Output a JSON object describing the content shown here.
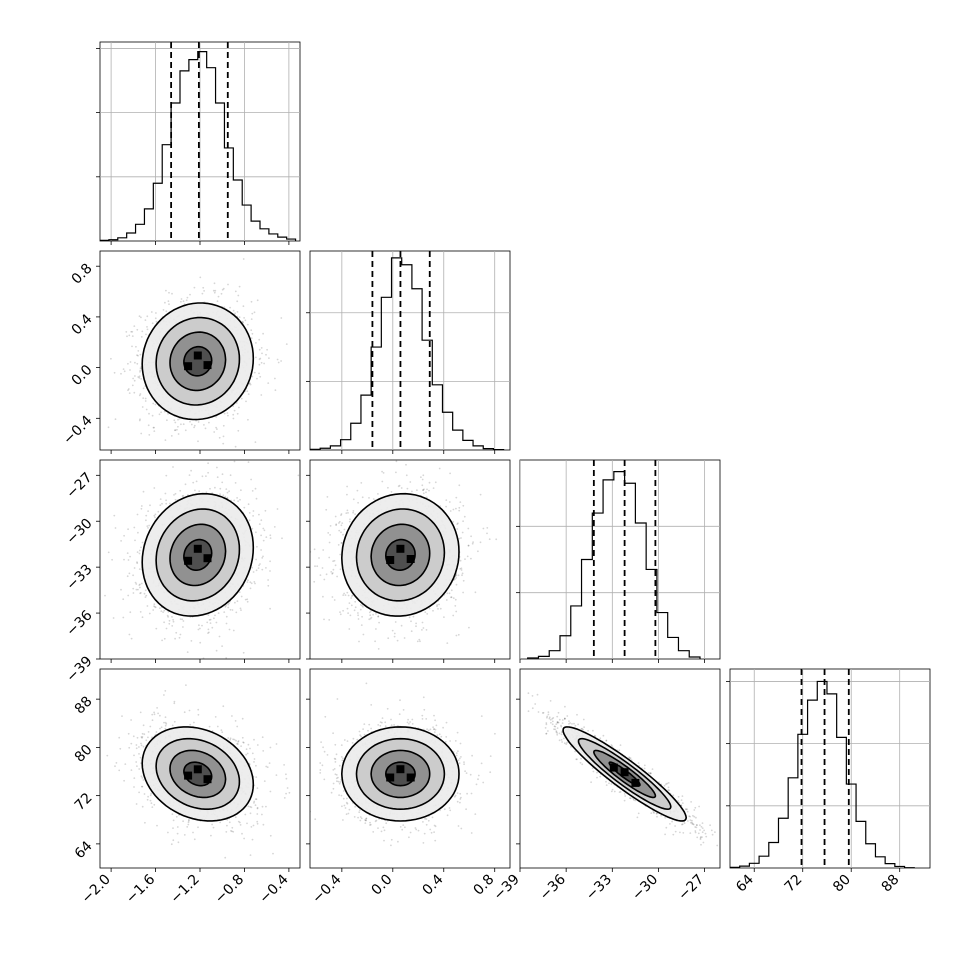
{
  "chart_data": {
    "type": "corner",
    "grid": true,
    "parameters": [
      {
        "id": "p0",
        "range": [
          -2.1,
          -0.3
        ],
        "ticks": [
          -2.0,
          -1.6,
          -1.2,
          -0.8,
          -0.4
        ],
        "tick_labels": [
          "−2.0",
          "−1.6",
          "−1.2",
          "−0.8",
          "−0.4"
        ],
        "quantiles": [
          -1.46,
          -1.21,
          -0.95
        ],
        "hist_bin_edges": [
          -2.1,
          -2.02,
          -1.94,
          -1.86,
          -1.78,
          -1.7,
          -1.62,
          -1.54,
          -1.46,
          -1.38,
          -1.3,
          -1.22,
          -1.14,
          -1.06,
          -0.98,
          -0.9,
          -0.82,
          -0.74,
          -0.66,
          -0.58,
          -0.5,
          -0.42,
          -0.34
        ],
        "hist_counts": [
          2,
          4,
          10,
          25,
          52,
          100,
          180,
          300,
          430,
          530,
          565,
          590,
          540,
          430,
          290,
          190,
          112,
          62,
          38,
          22,
          12,
          6
        ],
        "hist_ymax": 620,
        "hist_yticks": [
          200,
          400,
          600
        ]
      },
      {
        "id": "p1",
        "range": [
          -0.65,
          0.92
        ],
        "ticks": [
          -0.4,
          0.0,
          0.4,
          0.8
        ],
        "tick_labels": [
          "−0.4",
          "0.0",
          "0.4",
          "0.8"
        ],
        "quantiles": [
          -0.16,
          0.06,
          0.29
        ],
        "hist_bin_edges": [
          -0.65,
          -0.57,
          -0.49,
          -0.41,
          -0.33,
          -0.25,
          -0.17,
          -0.09,
          -0.01,
          0.07,
          0.15,
          0.23,
          0.31,
          0.39,
          0.47,
          0.55,
          0.63,
          0.71,
          0.79,
          0.87
        ],
        "hist_counts": [
          2,
          5,
          12,
          30,
          78,
          160,
          300,
          445,
          560,
          540,
          470,
          320,
          190,
          110,
          58,
          28,
          12,
          4,
          1
        ],
        "hist_ymax": 580,
        "hist_yticks": [
          200,
          400,
          600
        ]
      },
      {
        "id": "p2",
        "range": [
          -39.0,
          -26.0
        ],
        "ticks": [
          -39,
          -36,
          -33,
          -30,
          -27
        ],
        "tick_labels": [
          "−39",
          "−36",
          "−33",
          "−30",
          "−27"
        ],
        "quantiles": [
          -34.2,
          -32.2,
          -30.2
        ],
        "hist_bin_edges": [
          -38.5,
          -37.8,
          -37.1,
          -36.4,
          -35.7,
          -35.0,
          -34.3,
          -33.6,
          -32.9,
          -32.2,
          -31.5,
          -30.8,
          -30.1,
          -29.4,
          -28.7,
          -28.0,
          -27.3
        ],
        "hist_counts": [
          3,
          8,
          25,
          70,
          160,
          300,
          440,
          540,
          565,
          530,
          410,
          270,
          140,
          65,
          25,
          6
        ],
        "hist_ymax": 600,
        "hist_yticks": [
          200,
          400,
          600
        ]
      },
      {
        "id": "p3",
        "range": [
          60.0,
          93.0
        ],
        "ticks": [
          64,
          72,
          80,
          88
        ],
        "tick_labels": [
          "64",
          "72",
          "80",
          "88"
        ],
        "quantiles": [
          71.8,
          75.6,
          79.6
        ],
        "hist_bin_edges": [
          60.0,
          61.6,
          63.2,
          64.8,
          66.4,
          68.0,
          69.6,
          71.2,
          72.8,
          74.4,
          76.0,
          77.6,
          79.2,
          80.8,
          82.4,
          84.0,
          85.6,
          87.2,
          88.8,
          90.4
        ],
        "hist_counts": [
          2,
          6,
          15,
          38,
          82,
          160,
          290,
          430,
          540,
          600,
          560,
          420,
          270,
          150,
          78,
          36,
          14,
          5,
          1
        ],
        "hist_ymax": 640,
        "hist_yticks": [
          200,
          400,
          600
        ]
      }
    ],
    "pairs": [
      {
        "x": 0,
        "y": 1,
        "center": [
          -1.22,
          0.05
        ],
        "sigma": [
          0.25,
          0.23
        ],
        "corr": 0.05
      },
      {
        "x": 0,
        "y": 2,
        "center": [
          -1.22,
          -32.2
        ],
        "sigma": [
          0.25,
          2.0
        ],
        "corr": 0.12
      },
      {
        "x": 1,
        "y": 2,
        "center": [
          0.06,
          -32.2
        ],
        "sigma": [
          0.23,
          2.0
        ],
        "corr": 0.05
      },
      {
        "x": 0,
        "y": 3,
        "center": [
          -1.22,
          75.6
        ],
        "sigma": [
          0.25,
          3.9
        ],
        "corr": -0.22
      },
      {
        "x": 1,
        "y": 3,
        "center": [
          0.06,
          75.6
        ],
        "sigma": [
          0.23,
          3.9
        ],
        "corr": 0.0
      },
      {
        "x": 2,
        "y": 3,
        "center": [
          -32.2,
          75.6
        ],
        "sigma": [
          2.0,
          3.9
        ],
        "corr": -0.93
      }
    ],
    "contour_levels_sigma": [
      0.5,
      1.0,
      1.5,
      2.0
    ]
  }
}
